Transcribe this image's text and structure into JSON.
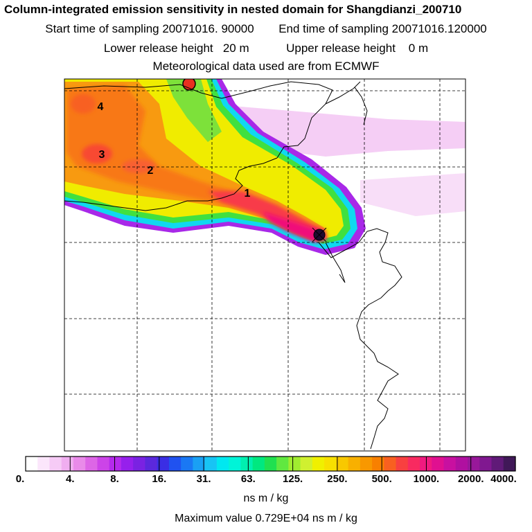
{
  "header": {
    "title": "Column-integrated emission sensitivity in nested domain for Shangdianzi_200710",
    "start_label": "Start time of sampling 20071016. 90000",
    "end_label": "End time of sampling 20071016.120000",
    "lower_label": "Lower release height   20 m",
    "upper_label": "Upper release height    0 m",
    "met_label": "Meteorological data used are from ECMWF"
  },
  "map": {
    "markers": [
      "1",
      "2",
      "3",
      "4"
    ]
  },
  "colorbar": {
    "labels": [
      "0.",
      "4.",
      "8.",
      "16.",
      "31.",
      "63.",
      "125.",
      "250.",
      "500.",
      "1000.",
      "2000.",
      "4000."
    ],
    "colors": [
      "#ffffff",
      "#fbe6fb",
      "#f6cbf6",
      "#f0aef0",
      "#e98be9",
      "#dd66e6",
      "#cc44e8",
      "#b52aec",
      "#9620ec",
      "#7a22e2",
      "#5b28dc",
      "#3a2ee4",
      "#2052f0",
      "#1a78f4",
      "#1aa0f4",
      "#18c4f4",
      "#00e8f0",
      "#00f4d8",
      "#00f0b0",
      "#00e880",
      "#20e050",
      "#60e840",
      "#a0ec30",
      "#d0f030",
      "#f0f000",
      "#f8e000",
      "#f8c800",
      "#f8b000",
      "#f89800",
      "#f88000",
      "#f86020",
      "#f84040",
      "#f82a60",
      "#f01a80",
      "#e01090",
      "#c810a0",
      "#b010a0",
      "#98189a",
      "#801890",
      "#601a78",
      "#401858"
    ],
    "units": "ns m / kg",
    "max_label": "Maximum value  0.729E+04 ns m / kg"
  }
}
